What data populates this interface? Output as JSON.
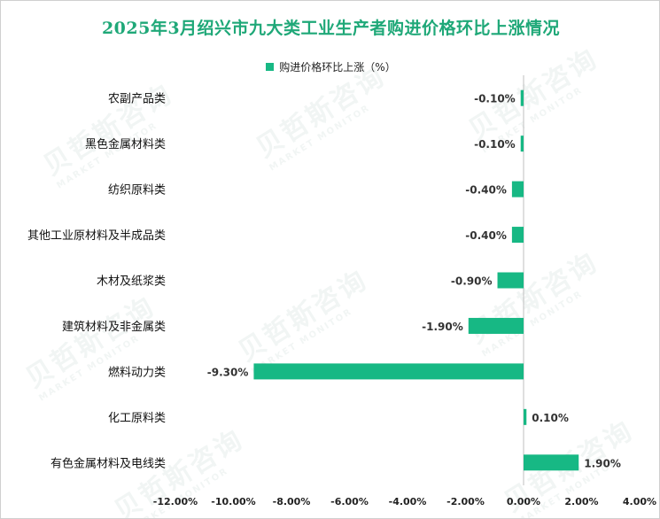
{
  "title": "2025年3月绍兴市九大类工业生产者购进价格环比上涨情况",
  "watermark": {
    "cn": "贝哲斯咨询",
    "en": "MARKET MONITOR"
  },
  "colors": {
    "bar": "#17b884",
    "title": "#1fa878",
    "axis": "#bfbfbf"
  },
  "chart_data": {
    "type": "bar",
    "orientation": "horizontal",
    "title": "2025年3月绍兴市九大类工业生产者购进价格环比上涨情况",
    "legend": [
      "购进价格环比上涨（%）"
    ],
    "legend_position": "top",
    "categories": [
      "农副产品类",
      "黑色金属材料类",
      "纺织原料类",
      "其他工业原材料及半成品类",
      "木材及纸浆类",
      "建筑材料及非金属类",
      "燃料动力类",
      "化工原料类",
      "有色金属材料及电线类"
    ],
    "values": [
      -0.1,
      -0.1,
      -0.4,
      -0.4,
      -0.9,
      -1.9,
      -9.3,
      0.1,
      1.9
    ],
    "data_labels": [
      "-0.10%",
      "-0.10%",
      "-0.40%",
      "-0.40%",
      "-0.90%",
      "-1.90%",
      "-9.30%",
      "0.10%",
      "1.90%"
    ],
    "xlim": [
      -12,
      4
    ],
    "x_ticks": [
      -12,
      -10,
      -8,
      -6,
      -4,
      -2,
      0,
      2,
      4
    ],
    "x_tick_labels": [
      "-12.00%",
      "-10.00%",
      "-8.00%",
      "-6.00%",
      "-4.00%",
      "-2.00%",
      "0.00%",
      "2.00%",
      "4.00%"
    ],
    "xlabel": "",
    "ylabel": "",
    "grid": false
  }
}
